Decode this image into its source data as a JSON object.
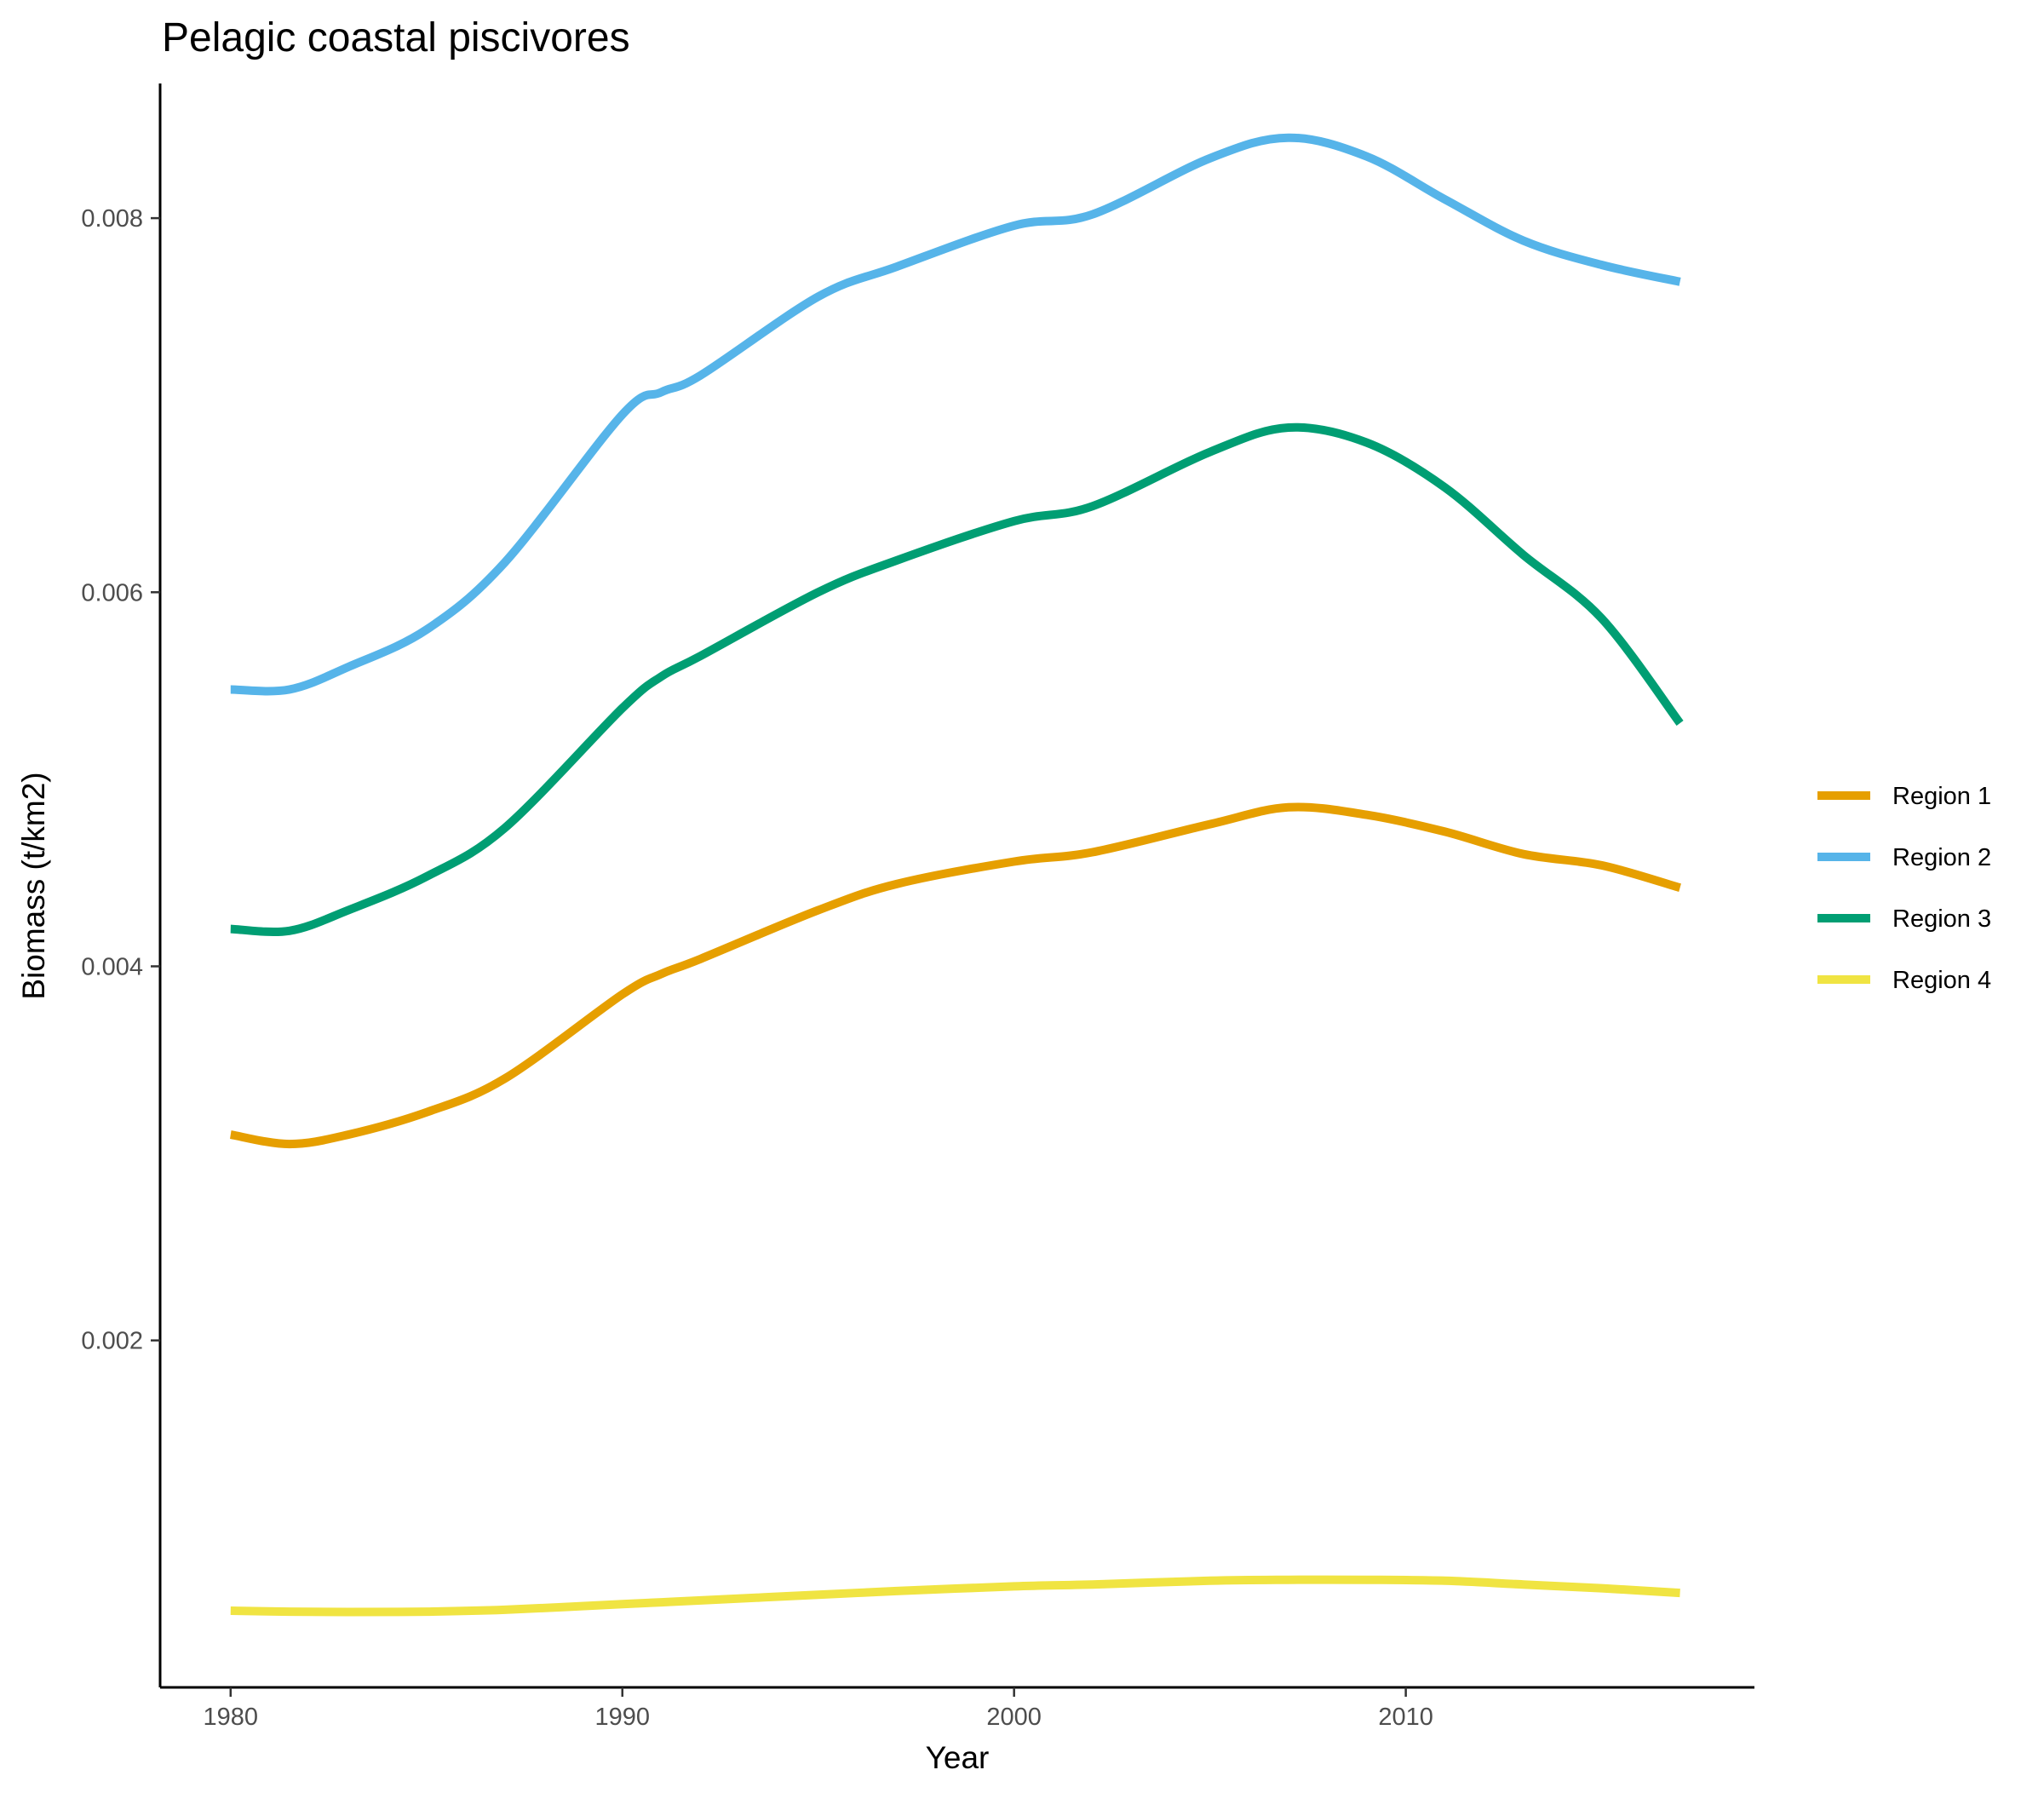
{
  "chart_data": {
    "type": "line",
    "title": "Pelagic coastal piscivores",
    "xlabel": "Year",
    "ylabel": "Biomass (t/km2)",
    "xlim": [
      1978.2,
      2018.9
    ],
    "ylim": [
      0.000145,
      0.00872
    ],
    "x_ticks": [
      1980,
      1990,
      2000,
      2010
    ],
    "y_ticks": [
      0.002,
      0.004,
      0.006,
      0.008
    ],
    "y_tick_labels": [
      "0.002",
      "0.004",
      "0.006",
      "0.008"
    ],
    "grid": false,
    "legend_position": "right",
    "series": [
      {
        "name": "Region 1",
        "color": "#E69F00",
        "x": [
          1980,
          1981.5,
          1983,
          1985,
          1987,
          1990,
          1991,
          1992,
          1995,
          1997,
          2000,
          2002,
          2005,
          2007,
          2009,
          2011,
          2013,
          2015,
          2017
        ],
        "values": [
          0.0031,
          0.00305,
          0.0031,
          0.00322,
          0.0034,
          0.00385,
          0.00396,
          0.00404,
          0.0043,
          0.00444,
          0.00456,
          0.00461,
          0.00476,
          0.00485,
          0.00481,
          0.00472,
          0.0046,
          0.00454,
          0.00442
        ]
      },
      {
        "name": "Region 2",
        "color": "#56B4E9",
        "x": [
          1980,
          1981.5,
          1983,
          1985,
          1987,
          1990,
          1991,
          1992,
          1995,
          1997,
          2000,
          2002,
          2005,
          2007,
          2009,
          2011,
          2013,
          2015,
          2017
        ],
        "values": [
          0.00548,
          0.00548,
          0.0056,
          0.0058,
          0.00616,
          0.00695,
          0.00707,
          0.00716,
          0.00758,
          0.00774,
          0.00796,
          0.00802,
          0.00832,
          0.00843,
          0.00833,
          0.0081,
          0.00788,
          0.00775,
          0.00766
        ]
      },
      {
        "name": "Region 3",
        "color": "#009E73",
        "x": [
          1980,
          1981.5,
          1983,
          1985,
          1987,
          1990,
          1991,
          1992,
          1995,
          1997,
          2000,
          2002,
          2005,
          2007,
          2009,
          2011,
          2013,
          2015,
          2017
        ],
        "values": [
          0.0042,
          0.00419,
          0.0043,
          0.00448,
          0.00474,
          0.00538,
          0.00555,
          0.00566,
          0.006,
          0.00617,
          0.00638,
          0.00646,
          0.00675,
          0.00688,
          0.0068,
          0.00656,
          0.0062,
          0.00586,
          0.0053
        ]
      },
      {
        "name": "Region 4",
        "color": "#F0E442",
        "x": [
          1980,
          1981.5,
          1983,
          1985,
          1987,
          1990,
          1991,
          1992,
          1995,
          1997,
          2000,
          2002,
          2005,
          2007,
          2009,
          2011,
          2013,
          2015,
          2017
        ],
        "values": [
          0.000555,
          0.00055,
          0.000548,
          0.00055,
          0.00056,
          0.00059,
          0.0006,
          0.00061,
          0.00064,
          0.00066,
          0.000685,
          0.000695,
          0.000715,
          0.00072,
          0.00072,
          0.000715,
          0.000695,
          0.000675,
          0.00065
        ]
      }
    ]
  }
}
